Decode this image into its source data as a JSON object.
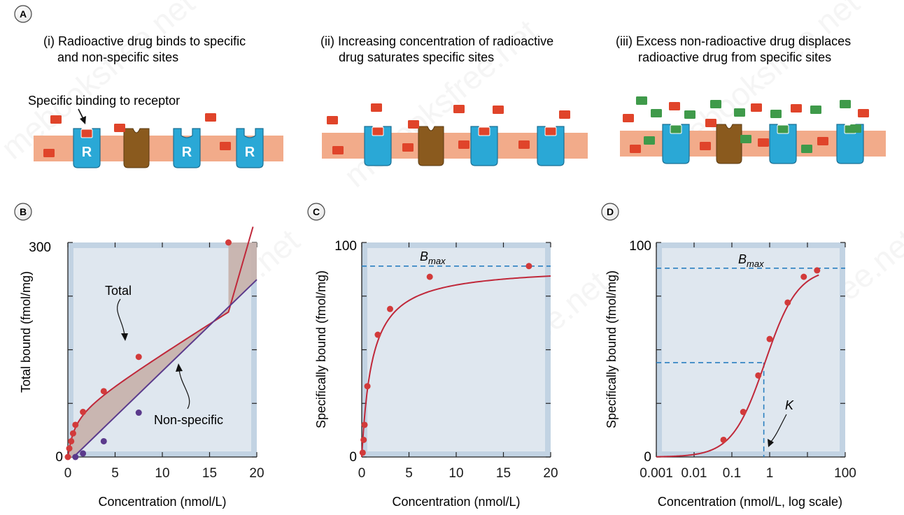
{
  "panel_a": {
    "badge": "A",
    "captions": [
      {
        "line1": "(i) Radioactive drug binds to specific",
        "line2": "and non-specific sites"
      },
      {
        "line1": "(ii) Increasing concentration of radioactive",
        "line2": "drug saturates specific sites"
      },
      {
        "line1": "(iii) Excess non-radioactive drug displaces",
        "line2": "radioactive drug from specific sites"
      }
    ],
    "annotation": "Specific binding to receptor",
    "receptor_letter": "R",
    "colors": {
      "membrane": "#f2ab8a",
      "receptor": "#2aa8d6",
      "nonspecific_site": "#8a5a1e",
      "radioactive_drug": "#e0442a",
      "nonradioactive_drug": "#3f9a4a"
    }
  },
  "chart_data": [
    {
      "panel": "B",
      "type": "line",
      "xlabel": "Concentration (nmol/L)",
      "ylabel": "Total bound (fmol/mg)",
      "xlim": [
        0,
        20
      ],
      "ylim": [
        0,
        300
      ],
      "xticks": [
        "0",
        "5",
        "10",
        "15",
        "20"
      ],
      "yticks": [
        "0",
        "300"
      ],
      "grid": false,
      "annotations": [
        "Total",
        "Non-specific"
      ],
      "series": [
        {
          "name": "Total",
          "color": "#c0283a",
          "x": [
            0,
            0.15,
            0.35,
            0.55,
            0.8,
            1.6,
            3.8,
            7.5,
            17
          ],
          "y": [
            0,
            12,
            22,
            33,
            45,
            63,
            92,
            140,
            300
          ]
        },
        {
          "name": "Non-specific",
          "color": "#5b3a8c",
          "x": [
            0.8,
            1.6,
            3.8,
            7.5
          ],
          "y": [
            0,
            5,
            22,
            62
          ]
        }
      ]
    },
    {
      "panel": "C",
      "type": "line",
      "xlabel": "Concentration (nmol/L)",
      "ylabel": "Specifically bound (fmol/mg)",
      "xlim": [
        0,
        20
      ],
      "ylim": [
        0,
        100
      ],
      "xticks": [
        "0",
        "5",
        "10",
        "15",
        "20"
      ],
      "yticks": [
        "0",
        "100"
      ],
      "grid": false,
      "reference_line": {
        "label": "B",
        "subscript": "max",
        "y": 89
      },
      "series": [
        {
          "name": "",
          "color": "#c0283a",
          "x": [
            0.1,
            0.2,
            0.3,
            0.6,
            1.7,
            3.0,
            7.2,
            17.7
          ],
          "y": [
            2,
            8,
            15,
            33,
            57,
            69,
            84,
            89
          ]
        }
      ]
    },
    {
      "panel": "D",
      "type": "line",
      "xlabel": "Concentration (nmol/L, log scale)",
      "ylabel": "Specifically bound (fmol/mg)",
      "xscale": "log",
      "xlim": [
        0.001,
        100
      ],
      "ylim": [
        0,
        100
      ],
      "xticks": [
        "0.001",
        "0.01",
        "0.1",
        "1",
        "100"
      ],
      "yticks": [
        "0",
        "100"
      ],
      "grid": false,
      "reference_lines": [
        {
          "label": "B",
          "subscript": "max",
          "y": 88
        },
        {
          "label": "K",
          "x": 0.7,
          "y": 44
        }
      ],
      "series": [
        {
          "name": "",
          "color": "#c0283a",
          "x": [
            0.06,
            0.2,
            0.5,
            1.0,
            3.0,
            8.0,
            18.0
          ],
          "y": [
            8,
            21,
            38,
            55,
            72,
            84,
            87
          ]
        }
      ]
    }
  ],
  "badges": [
    "B",
    "C",
    "D"
  ],
  "watermark": "mebooksfree.net"
}
